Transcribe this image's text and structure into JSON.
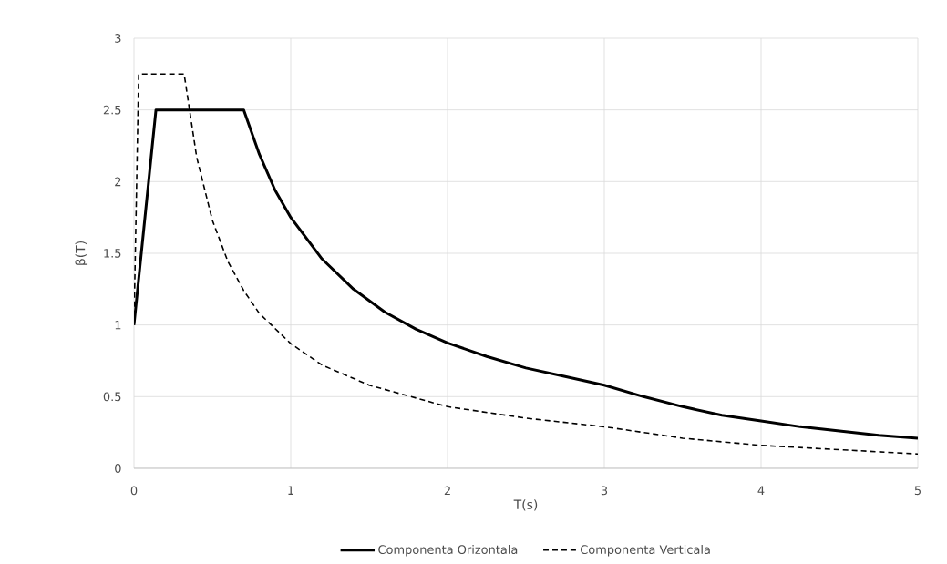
{
  "chart_data": {
    "type": "line",
    "xlabel": "T(s)",
    "ylabel": "β(T)",
    "series": [
      {
        "name": "Componenta Orizontala",
        "color": "#000000",
        "line_style": "solid",
        "x": [
          0,
          0.14,
          0.7,
          0.8,
          0.9,
          1,
          1.2,
          1.4,
          1.6,
          1.8,
          2,
          2.25,
          2.5,
          2.75,
          3,
          3.25,
          3.5,
          3.75,
          4,
          4.25,
          4.5,
          4.75,
          5
        ],
        "values": [
          1,
          2.5,
          2.5,
          2.19,
          1.94,
          1.75,
          1.46,
          1.25,
          1.09,
          0.97,
          0.875,
          0.78,
          0.7,
          0.64,
          0.58,
          0.5,
          0.43,
          0.37,
          0.33,
          0.29,
          0.26,
          0.23,
          0.21
        ]
      },
      {
        "name": "Componenta Verticala",
        "color": "#000000",
        "line_style": "dashed",
        "x": [
          0,
          0.03,
          0.32,
          0.4,
          0.5,
          0.6,
          0.7,
          0.8,
          1,
          1.2,
          1.5,
          2,
          2.5,
          3,
          3.5,
          4,
          4.5,
          5
        ],
        "values": [
          1,
          2.75,
          2.75,
          2.17,
          1.73,
          1.44,
          1.24,
          1.08,
          0.87,
          0.72,
          0.58,
          0.43,
          0.35,
          0.29,
          0.21,
          0.16,
          0.13,
          0.1
        ]
      }
    ],
    "xlim": [
      0,
      5
    ],
    "ylim": [
      0,
      3
    ],
    "xticks": [
      0,
      1,
      2,
      3,
      4,
      5
    ],
    "yticks": [
      0,
      0.5,
      1,
      1.5,
      2,
      2.5,
      3
    ],
    "grid": true,
    "legend": "bottom"
  }
}
